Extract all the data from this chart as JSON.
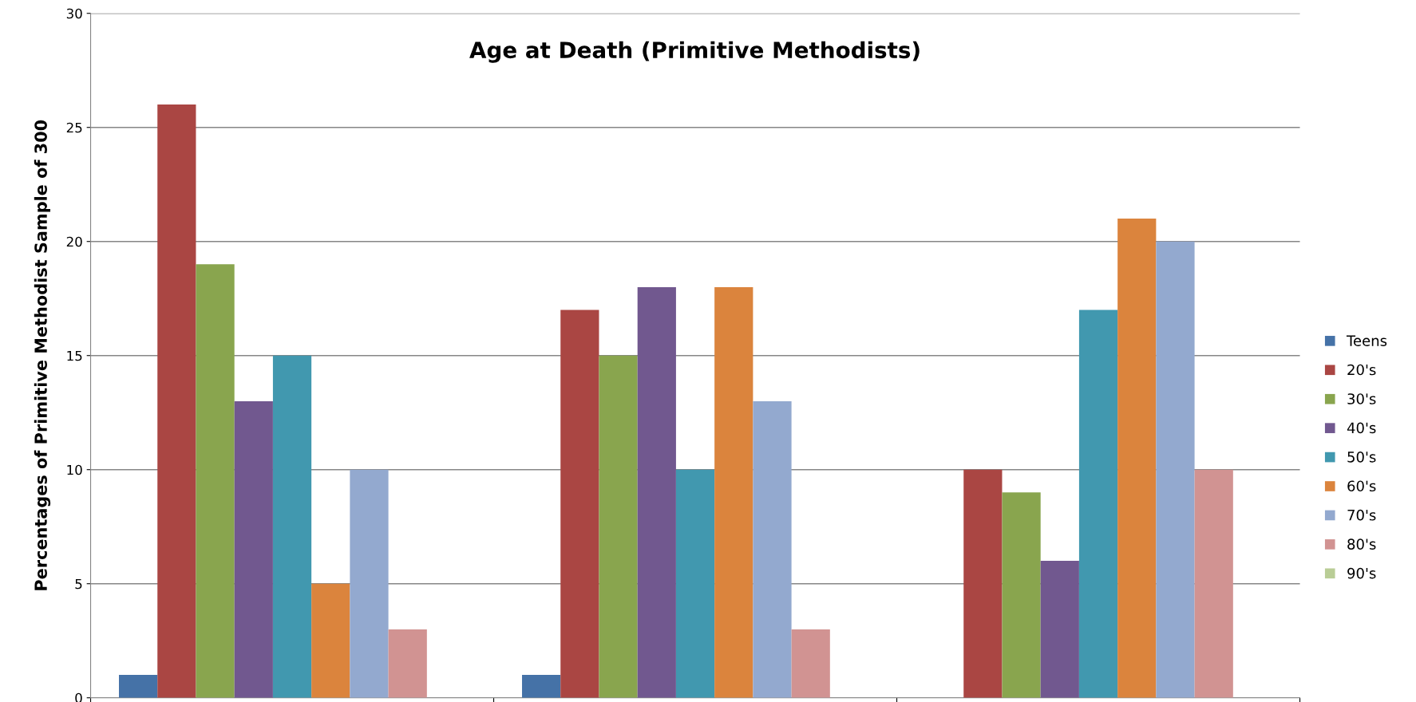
{
  "chart_data": {
    "type": "bar",
    "title": "Age at Death (Primitive Methodists)",
    "ylabel": "Percentages of Primitive Methodist Sample of 300",
    "categories": [
      null,
      null,
      null
    ],
    "series": [
      {
        "name": "Teens",
        "color": "#4572a7",
        "values": [
          1,
          1,
          0
        ]
      },
      {
        "name": "20's",
        "color": "#aa4643",
        "values": [
          26,
          17,
          10
        ]
      },
      {
        "name": "30's",
        "color": "#89a54e",
        "values": [
          19,
          15,
          9
        ]
      },
      {
        "name": "40's",
        "color": "#71588f",
        "values": [
          13,
          18,
          6
        ]
      },
      {
        "name": "50's",
        "color": "#4198af",
        "values": [
          15,
          10,
          17
        ]
      },
      {
        "name": "60's",
        "color": "#db843d",
        "values": [
          5,
          18,
          21
        ]
      },
      {
        "name": "70's",
        "color": "#93a9cf",
        "values": [
          10,
          13,
          20
        ]
      },
      {
        "name": "80's",
        "color": "#d19392",
        "values": [
          3,
          3,
          10
        ]
      },
      {
        "name": "90's",
        "color": "#b9cd96",
        "values": [
          0,
          0,
          0
        ]
      }
    ],
    "ylim": [
      0,
      30
    ],
    "yticks": [
      0,
      5,
      10,
      15,
      20,
      25,
      30
    ],
    "grid": "y",
    "legend": "right",
    "tick_labels": "y"
  }
}
